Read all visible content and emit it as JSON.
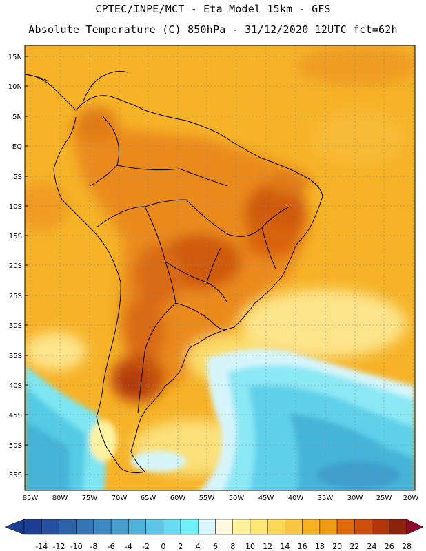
{
  "header": {
    "line1": "CPTEC/INPE/MCT -  Eta Model 15km - GFS",
    "line2": "Absolute Temperature (C) 850hPa - 31/12/2020 12UTC fct=62h"
  },
  "map": {
    "region": "South America",
    "lat_labels": [
      "15N",
      "10N",
      "5N",
      "EQ",
      "5S",
      "10S",
      "15S",
      "20S",
      "25S",
      "30S",
      "35S",
      "40S",
      "45S",
      "50S",
      "55S"
    ],
    "lon_labels": [
      "85W",
      "80W",
      "75W",
      "70W",
      "65W",
      "60W",
      "55W",
      "50W",
      "45W",
      "40W",
      "35W",
      "30W",
      "25W",
      "20W"
    ]
  },
  "colorbar": {
    "labels": [
      "-14",
      "-12",
      "-10",
      "-8",
      "-6",
      "-4",
      "-2",
      "0",
      "2",
      "4",
      "6",
      "8",
      "10",
      "12",
      "14",
      "16",
      "18",
      "20",
      "22",
      "24",
      "26",
      "28"
    ],
    "colors": [
      "#1c3f94",
      "#25509f",
      "#2c62aa",
      "#3576b5",
      "#3e8ac2",
      "#489ecf",
      "#51b2db",
      "#5cc6e8",
      "#66dbf2",
      "#70f0fb",
      "#d9f6fc",
      "#fff9e2",
      "#fff29a",
      "#fee774",
      "#fcd857",
      "#f9c641",
      "#f5b11f",
      "#f09b14",
      "#e06b0c",
      "#cf4f0c",
      "#b2360a",
      "#8c2209"
    ],
    "extend_low": "#1c3f94",
    "extend_high": "#8c0a2a"
  }
}
